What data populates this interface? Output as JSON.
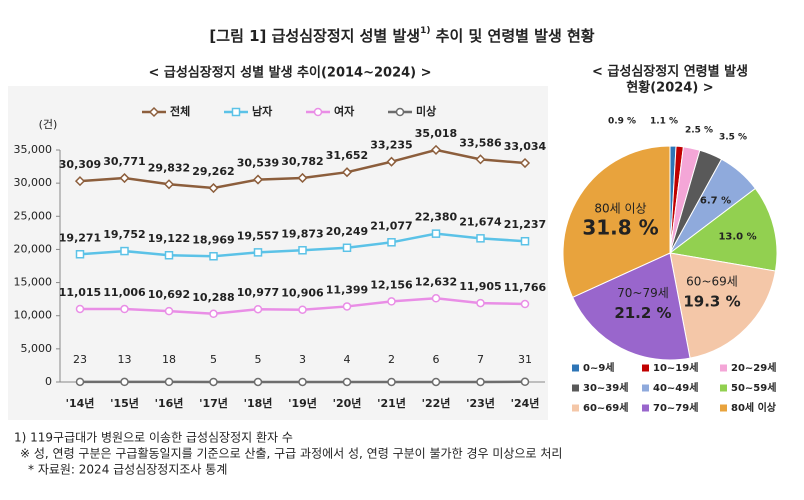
{
  "header": {
    "title": "[그림 1] 급성심장정지 성별 발생",
    "title_sup": "1)",
    "title_rest": " 추이 및 연령별 발생 현황"
  },
  "chart_data": [
    {
      "type": "line",
      "title": "< 급성심장정지 성별 발생 추이(2014~2024) >",
      "y_unit": "(건)",
      "categories": [
        "'14년",
        "'15년",
        "'16년",
        "'17년",
        "'18년",
        "'19년",
        "'20년",
        "'21년",
        "'22년",
        "'23년",
        "'24년"
      ],
      "ylim": [
        0,
        35000
      ],
      "yticks": [
        0,
        {
          "value": 5000,
          "label": "5,000"
        },
        {
          "value": 10000,
          "label": "10,000"
        },
        {
          "value": 15000,
          "label": "15,000"
        },
        {
          "value": 20000,
          "label": "20,000"
        },
        {
          "value": 25000,
          "label": "25,000"
        },
        {
          "value": 30000,
          "label": "30,000"
        },
        {
          "value": 35000,
          "label": "35,000"
        }
      ],
      "series": [
        {
          "name": "전체",
          "color": "#8c5e3c",
          "marker": "diamond",
          "values": [
            30309,
            30771,
            29832,
            29262,
            30539,
            30782,
            31652,
            33235,
            35018,
            33586,
            33034
          ],
          "value_labels": [
            "30,309",
            "30,771",
            "29,832",
            "29,262",
            "30,539",
            "30,782",
            "31,652",
            "33,235",
            "35,018",
            "33,586",
            "33,034"
          ]
        },
        {
          "name": "남자",
          "color": "#5bc2e7",
          "marker": "square",
          "values": [
            19271,
            19752,
            19122,
            18969,
            19557,
            19873,
            20249,
            21077,
            22380,
            21674,
            21237
          ],
          "value_labels": [
            "19,271",
            "19,752",
            "19,122",
            "18,969",
            "19,557",
            "19,873",
            "20,249",
            "21,077",
            "22,380",
            "21,674",
            "21,237"
          ]
        },
        {
          "name": "여자",
          "color": "#e98ee6",
          "marker": "circle",
          "values": [
            11015,
            11006,
            10692,
            10288,
            10977,
            10906,
            11399,
            12156,
            12632,
            11905,
            11766
          ],
          "value_labels": [
            "11,015",
            "11,006",
            "10,692",
            "10,288",
            "10,977",
            "10,906",
            "11,399",
            "12,156",
            "12,632",
            "11,905",
            "11,766"
          ]
        },
        {
          "name": "미상",
          "color": "#6d6d6d",
          "marker": "circle",
          "values": [
            23,
            13,
            18,
            5,
            5,
            3,
            4,
            2,
            6,
            7,
            31
          ]
        }
      ]
    },
    {
      "type": "pie",
      "title": "< 급성심장정지 연령별 발생",
      "title_line2": "현황(2024) >",
      "categories": [
        "0~9세",
        "10~19세",
        "20~29세",
        "30~39세",
        "40~49세",
        "50~59세",
        "60~69세",
        "70~79세",
        "80세 이상"
      ],
      "values": [
        0.9,
        1.1,
        2.5,
        3.5,
        6.7,
        13.0,
        19.3,
        21.2,
        31.8
      ],
      "value_labels": [
        "0.9 %",
        "1.1 %",
        "2.5 %",
        "3.5 %",
        "6.7 %",
        "13.0 %",
        "19.3 %",
        "21.2 %",
        "31.8 %"
      ],
      "colors": [
        "#2e75b6",
        "#c00000",
        "#f4a6d7",
        "#595959",
        "#8faadc",
        "#92d050",
        "#f4c7a8",
        "#9966cc",
        "#e8a33d"
      ]
    }
  ],
  "footnotes": [
    "1) 119구급대가 병원으로 이송한 급성심장정지 환자 수",
    "※ 성, 연령 구분은 구급활동일지를 기준으로 산출, 구급 과정에서 성, 연령 구분이 불가한 경우 미상으로 처리",
    "* 자료원: 2024 급성심장정지조사 통계"
  ]
}
